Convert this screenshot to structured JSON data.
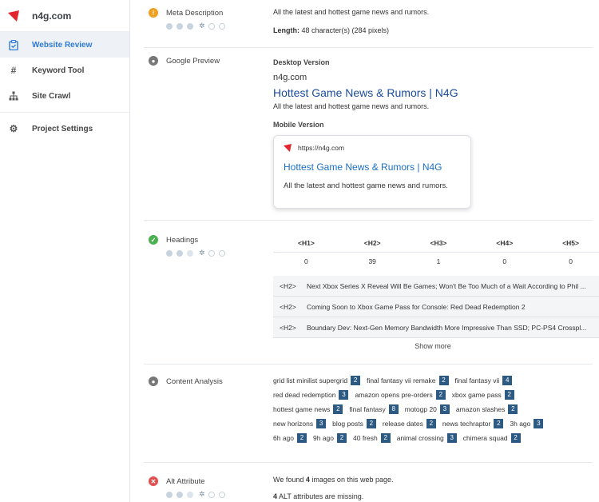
{
  "brand": {
    "name": "n4g.com"
  },
  "nav": [
    {
      "label": "Website Review",
      "icon": "clipboard-check-icon",
      "active": true
    },
    {
      "label": "Keyword Tool",
      "icon": "hash-icon"
    },
    {
      "label": "Site Crawl",
      "icon": "sitemap-icon"
    },
    {
      "label": "Project Settings",
      "icon": "gear-icon"
    }
  ],
  "colors": {
    "accent": "#2f7bd6",
    "badge": "#2c5a82",
    "link": "#1a4c9c",
    "brand_red": "#e0262e"
  },
  "meta": {
    "title": "Meta Description",
    "status": "warning",
    "text": "All the latest and hottest game news and rumors.",
    "length_label": "Length:",
    "length_value": "48 character(s) (284 pixels)"
  },
  "google_preview": {
    "title": "Google Preview",
    "desktop_label": "Desktop Version",
    "desktop_url": "n4g.com",
    "desktop_title": "Hottest Game News & Rumors | N4G",
    "desktop_desc": "All the latest and hottest game news and rumors.",
    "mobile_label": "Mobile Version",
    "mobile_url": "https://n4g.com",
    "mobile_title": "Hottest Game News & Rumors | N4G",
    "mobile_desc": "All the latest and hottest game news and rumors."
  },
  "headings": {
    "title": "Headings",
    "status": "ok",
    "cols": [
      "<H1>",
      "<H2>",
      "<H3>",
      "<H4>",
      "<H5>"
    ],
    "counts": [
      "0",
      "39",
      "1",
      "0",
      "0"
    ],
    "rows": [
      {
        "tag": "<H2>",
        "text": "Next Xbox Series X Reveal Will Be Games; Won't Be Too Much of a Wait According to Phil ..."
      },
      {
        "tag": "<H2>",
        "text": "Coming Soon to Xbox Game Pass for Console: Red Dead Redemption 2"
      },
      {
        "tag": "<H2>",
        "text": "Boundary Dev: Next-Gen Memory Bandwidth More Impressive Than SSD; PC-PS4 Crosspl..."
      }
    ],
    "show_more": "Show more"
  },
  "content": {
    "title": "Content Analysis",
    "lines": [
      [
        {
          "k": "grid list minilist supergrid",
          "n": "2"
        },
        {
          "k": "final fantasy vii remake",
          "n": "2"
        },
        {
          "k": "final fantasy vii",
          "n": "4"
        }
      ],
      [
        {
          "k": "red dead redemption",
          "n": "3"
        },
        {
          "k": "amazon opens pre-orders",
          "n": "2"
        },
        {
          "k": "xbox game pass",
          "n": "2"
        }
      ],
      [
        {
          "k": "hottest game news",
          "n": "2"
        },
        {
          "k": "final fantasy",
          "n": "8"
        },
        {
          "k": "motogp 20",
          "n": "3"
        },
        {
          "k": "amazon slashes",
          "n": "2"
        }
      ],
      [
        {
          "k": "new horizons",
          "n": "3"
        },
        {
          "k": "blog posts",
          "n": "2"
        },
        {
          "k": "release dates",
          "n": "2"
        },
        {
          "k": "news techraptor",
          "n": "2"
        },
        {
          "k": "3h ago",
          "n": "3"
        }
      ],
      [
        {
          "k": "6h ago",
          "n": "2"
        },
        {
          "k": "9h ago",
          "n": "2"
        },
        {
          "k": "40 fresh",
          "n": "2"
        },
        {
          "k": "animal crossing",
          "n": "3"
        },
        {
          "k": "chimera squad",
          "n": "2"
        }
      ]
    ]
  },
  "alt": {
    "title": "Alt Attribute",
    "status": "error",
    "line1_pre": "We found",
    "line1_num": "4",
    "line1_post": "images on this web page.",
    "line2_num": "4",
    "line2_post": "ALT attributes are missing."
  }
}
